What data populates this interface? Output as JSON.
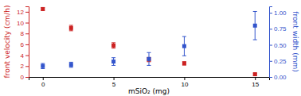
{
  "chart_data": {
    "type": "scatter",
    "xlabel": "mSiO₂ (mg)",
    "ylabel": "front velocity (cm/h)",
    "y2label": "front width (mm)",
    "x": [
      0,
      2,
      5,
      7.5,
      10,
      15
    ],
    "series": [
      {
        "color": "#cc2222",
        "marker": "square",
        "values": [
          12.5,
          9.0,
          5.8,
          3.2,
          2.5,
          0.5
        ],
        "errors": [
          0.25,
          0.5,
          0.5,
          0.4,
          0.3,
          0.2
        ]
      },
      {
        "color": "#3355cc",
        "marker": "square",
        "axis": "y2",
        "values": [
          0.17,
          0.19,
          0.24,
          0.28,
          0.48,
          0.8
        ],
        "errors": [
          0.04,
          0.04,
          0.06,
          0.1,
          0.15,
          0.22
        ]
      }
    ],
    "xlim": [
      -1,
      16
    ],
    "xticks": [
      0,
      5,
      10,
      15
    ],
    "ylim": [
      0,
      13
    ],
    "yticks": [
      0,
      2,
      4,
      6,
      8,
      10,
      12
    ],
    "y2lim": [
      0.0,
      1.1
    ],
    "y2ticks": [
      {
        "value": 0.0,
        "label": "0.00"
      },
      0.25,
      {
        "value": 0.5,
        "label": "0.50"
      },
      0.75,
      {
        "value": 1.0,
        "label": "1.00"
      }
    ],
    "grid": false
  }
}
